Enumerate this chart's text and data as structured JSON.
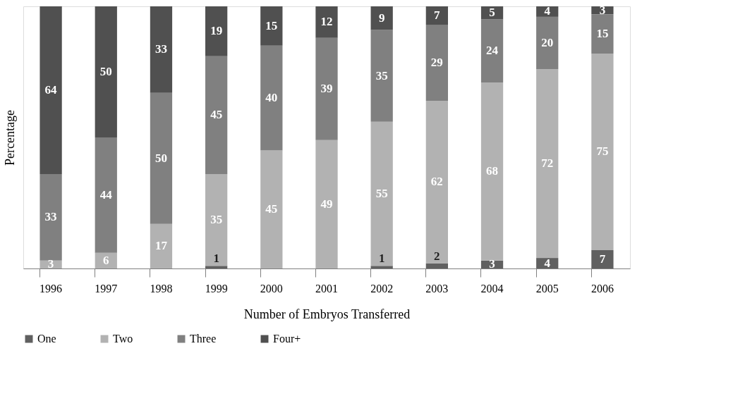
{
  "chart_data": {
    "type": "bar",
    "stacked": true,
    "xlabel": "Number of Embryos Transferred",
    "ylabel": "Percentage",
    "categories": [
      "1996",
      "1997",
      "1998",
      "1999",
      "2000",
      "2001",
      "2002",
      "2003",
      "2004",
      "2005",
      "2006"
    ],
    "series": [
      {
        "name": "One",
        "color": "#606060",
        "values": [
          null,
          null,
          null,
          1,
          null,
          null,
          1,
          2,
          3,
          4,
          7
        ]
      },
      {
        "name": "Two",
        "color": "#b2b2b2",
        "values": [
          3,
          6,
          17,
          35,
          45,
          49,
          55,
          62,
          68,
          72,
          75
        ]
      },
      {
        "name": "Three",
        "color": "#808080",
        "values": [
          33,
          44,
          50,
          45,
          40,
          39,
          35,
          29,
          24,
          20,
          15
        ]
      },
      {
        "name": "Four+",
        "color": "#505050",
        "values": [
          64,
          50,
          33,
          19,
          15,
          12,
          9,
          7,
          5,
          4,
          3
        ]
      }
    ],
    "ylim": [
      0,
      100
    ],
    "tick_labels": "x",
    "data_labels": true,
    "legend": "bottom",
    "grid": false
  }
}
